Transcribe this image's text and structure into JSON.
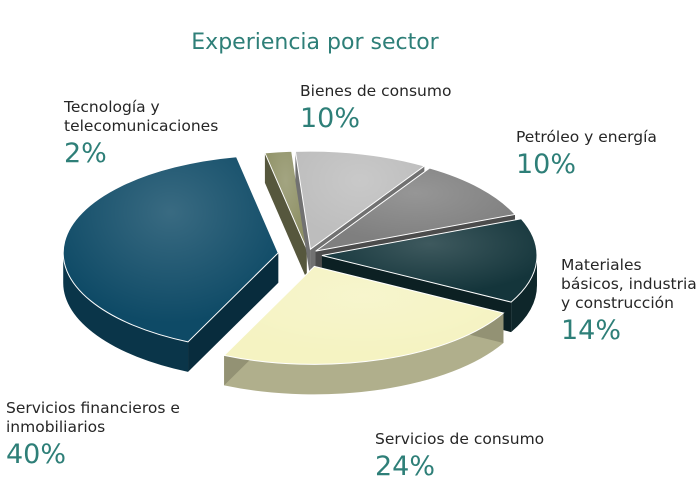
{
  "chart_data": {
    "type": "pie",
    "title": "Experiencia por sector",
    "slices": [
      {
        "label": "Bienes de consumo",
        "value": 10,
        "value_label": "10%",
        "color": "#bdbdbd"
      },
      {
        "label": "Petróleo y energía",
        "value": 10,
        "value_label": "10%",
        "color": "#7f7f7f"
      },
      {
        "label": "Materiales básicos, industria y construcción",
        "value": 14,
        "value_label": "14%",
        "color": "#14353b"
      },
      {
        "label": "Servicios de consumo",
        "value": 24,
        "value_label": "24%",
        "color": "#f5f3c2"
      },
      {
        "label": "Servicios financieros e inmobiliarios",
        "value": 40,
        "value_label": "40%",
        "color": "#0e4a66"
      },
      {
        "label": "Tecnología y telecomunicaciones",
        "value": 2,
        "value_label": "2%",
        "color": "#8f9166"
      }
    ]
  }
}
